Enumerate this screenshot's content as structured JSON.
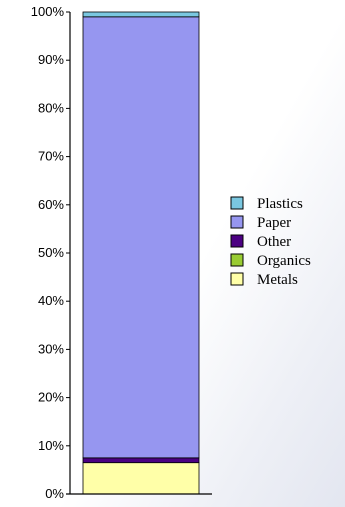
{
  "chart_data": {
    "type": "bar",
    "stacked": true,
    "percent": true,
    "categories": [
      ""
    ],
    "ylim": [
      0,
      100
    ],
    "yticks": [
      "0%",
      "10%",
      "20%",
      "30%",
      "40%",
      "50%",
      "60%",
      "70%",
      "80%",
      "90%",
      "100%"
    ],
    "series": [
      {
        "name": "Metals",
        "values": [
          6.5
        ],
        "color": "#ffffa8"
      },
      {
        "name": "Organics",
        "values": [
          0.0
        ],
        "color": "#99cc33"
      },
      {
        "name": "Other",
        "values": [
          1.0
        ],
        "color": "#4b0082"
      },
      {
        "name": "Paper",
        "values": [
          91.5
        ],
        "color": "#9696f0"
      },
      {
        "name": "Plastics",
        "values": [
          1.0
        ],
        "color": "#7ac7e0"
      }
    ],
    "legend": {
      "position": "right",
      "order": [
        "Plastics",
        "Paper",
        "Other",
        "Organics",
        "Metals"
      ]
    }
  }
}
